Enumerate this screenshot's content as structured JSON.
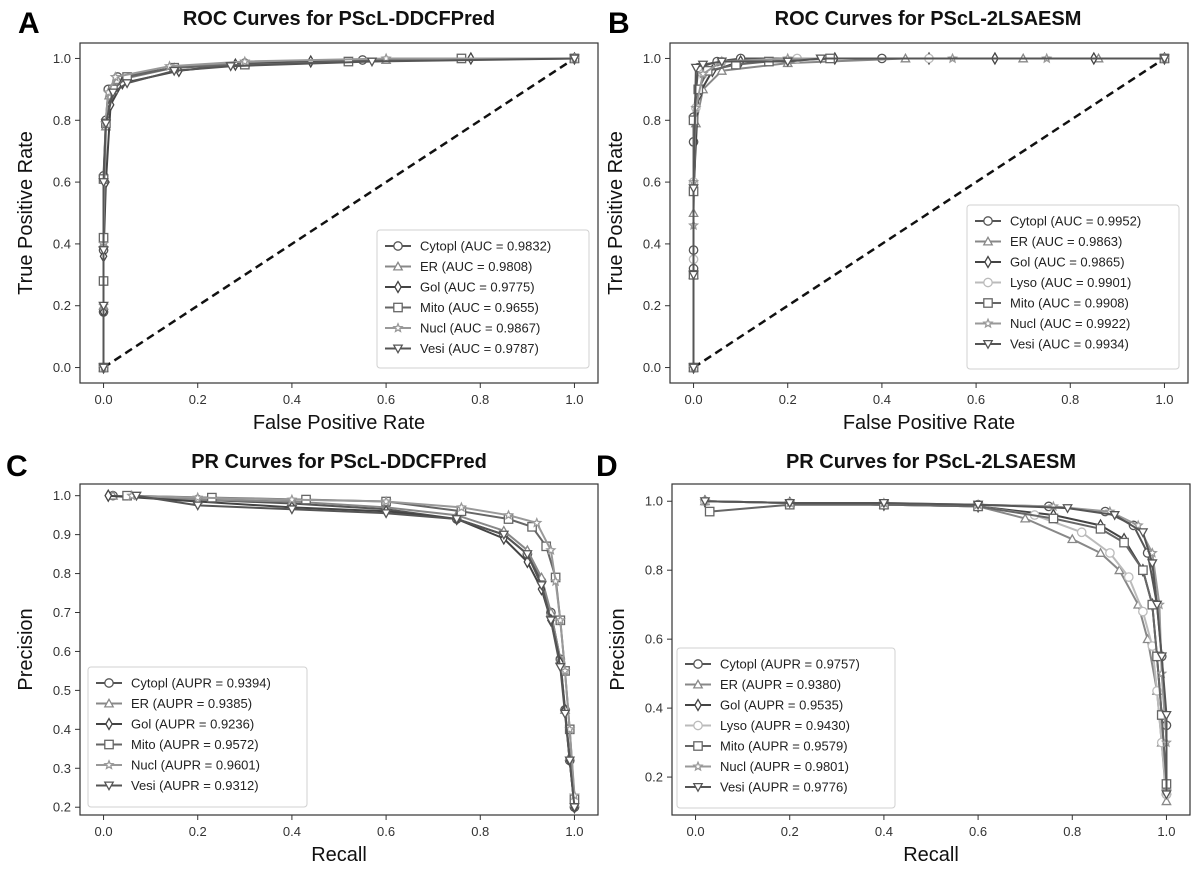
{
  "figure": {
    "panels": [
      "A",
      "B",
      "C",
      "D"
    ]
  },
  "chart_data": [
    {
      "panel": "A",
      "type": "line",
      "title": "ROC Curves for PScL-DDCFPred",
      "xlabel": "False Positive Rate",
      "ylabel": "True Positive Rate",
      "xlim": [
        -0.05,
        1.05
      ],
      "ylim": [
        -0.05,
        1.05
      ],
      "xticks": [
        "0.0",
        "0.2",
        "0.4",
        "0.6",
        "0.8",
        "1.0"
      ],
      "yticks": [
        "0.0",
        "0.2",
        "0.4",
        "0.6",
        "0.8",
        "1.0"
      ],
      "grid": false,
      "legend_position": "lower-right",
      "diagonal": "dashed black line from (0,0) to (1,1)",
      "series": [
        {
          "name": "Cytopl (AUC = 0.9832)",
          "marker": "circle",
          "color": "#555555",
          "x": [
            0,
            0,
            0,
            0,
            0.005,
            0.01,
            0.03,
            0.15,
            0.3,
            0.55,
            1.0
          ],
          "y": [
            0,
            0.18,
            0.38,
            0.62,
            0.8,
            0.9,
            0.94,
            0.97,
            0.985,
            0.995,
            1.0
          ]
        },
        {
          "name": "ER (AUC = 0.9808)",
          "marker": "triangle-up",
          "color": "#888888",
          "x": [
            0,
            0,
            0,
            0.005,
            0.012,
            0.03,
            0.15,
            0.3,
            0.6,
            1.0
          ],
          "y": [
            0,
            0.2,
            0.4,
            0.78,
            0.88,
            0.93,
            0.97,
            0.985,
            0.995,
            1.0
          ]
        },
        {
          "name": "Gol (AUC = 0.9775)",
          "marker": "diamond",
          "color": "#444444",
          "x": [
            0,
            0,
            0,
            0.005,
            0.015,
            0.04,
            0.16,
            0.28,
            0.44,
            0.78,
            1.0
          ],
          "y": [
            0,
            0.18,
            0.36,
            0.6,
            0.85,
            0.92,
            0.96,
            0.98,
            0.99,
            1.0,
            1.0
          ]
        },
        {
          "name": "Mito (AUC = 0.9655)",
          "marker": "square",
          "color": "#666666",
          "x": [
            0,
            0,
            0,
            0,
            0.005,
            0.02,
            0.05,
            0.15,
            0.3,
            0.52,
            0.76,
            1.0
          ],
          "y": [
            0,
            0.28,
            0.42,
            0.61,
            0.79,
            0.9,
            0.94,
            0.97,
            0.98,
            0.99,
            1.0,
            1.0
          ]
        },
        {
          "name": "Nucl (AUC = 0.9867)",
          "marker": "star",
          "color": "#999999",
          "x": [
            0,
            0,
            0,
            0.004,
            0.01,
            0.025,
            0.14,
            0.3,
            0.6,
            1.0
          ],
          "y": [
            0,
            0.2,
            0.4,
            0.79,
            0.89,
            0.94,
            0.975,
            0.99,
            1.0,
            1.0
          ]
        },
        {
          "name": "Vesi (AUC = 0.9787)",
          "marker": "triangle-down",
          "color": "#555555",
          "x": [
            0,
            0,
            0,
            0,
            0.005,
            0.02,
            0.05,
            0.15,
            0.27,
            0.57,
            1.0
          ],
          "y": [
            0,
            0.2,
            0.38,
            0.6,
            0.79,
            0.89,
            0.92,
            0.96,
            0.975,
            0.99,
            1.0
          ]
        }
      ]
    },
    {
      "panel": "B",
      "type": "line",
      "title": "ROC Curves for PScL-2LSAESM",
      "xlabel": "False Positive Rate",
      "ylabel": "True Positive Rate",
      "xlim": [
        -0.05,
        1.05
      ],
      "ylim": [
        -0.05,
        1.05
      ],
      "xticks": [
        "0.0",
        "0.2",
        "0.4",
        "0.6",
        "0.8",
        "1.0"
      ],
      "yticks": [
        "0.0",
        "0.2",
        "0.4",
        "0.6",
        "0.8",
        "1.0"
      ],
      "grid": false,
      "legend_position": "lower-right",
      "diagonal": "dashed black line from (0,0) to (1,1)",
      "series": [
        {
          "name": "Cytopl (AUC = 0.9952)",
          "marker": "circle",
          "color": "#555555",
          "x": [
            0,
            0,
            0,
            0,
            0,
            0.01,
            0.05,
            0.1,
            0.4,
            1.0
          ],
          "y": [
            0,
            0.32,
            0.38,
            0.73,
            0.81,
            0.97,
            0.99,
            1.0,
            1.0,
            1.0
          ]
        },
        {
          "name": "ER (AUC = 0.9863)",
          "marker": "triangle-up",
          "color": "#888888",
          "x": [
            0,
            0,
            0,
            0.005,
            0.02,
            0.06,
            0.2,
            0.45,
            0.7,
            0.86,
            1.0
          ],
          "y": [
            0,
            0.3,
            0.5,
            0.79,
            0.9,
            0.96,
            0.985,
            1.0,
            1.0,
            1.0,
            1.0
          ]
        },
        {
          "name": "Gol (AUC = 0.9865)",
          "marker": "diamond",
          "color": "#444444",
          "x": [
            0,
            0,
            0,
            0.01,
            0.04,
            0.1,
            0.3,
            0.5,
            0.64,
            0.85,
            1.0
          ],
          "y": [
            0,
            0.3,
            0.57,
            0.88,
            0.96,
            0.99,
            1.0,
            1.0,
            1.0,
            1.0,
            1.0
          ]
        },
        {
          "name": "Lyso (AUC = 0.9901)",
          "marker": "circle",
          "color": "#bbbbbb",
          "x": [
            0,
            0,
            0,
            0.005,
            0.02,
            0.06,
            0.22,
            0.5,
            1.0
          ],
          "y": [
            0,
            0.35,
            0.6,
            0.84,
            0.95,
            0.99,
            1.0,
            1.0,
            1.0
          ]
        },
        {
          "name": "Mito (AUC = 0.9908)",
          "marker": "square",
          "color": "#666666",
          "x": [
            0,
            0,
            0,
            0,
            0.01,
            0.03,
            0.09,
            0.16,
            0.29,
            1.0
          ],
          "y": [
            0,
            0.3,
            0.57,
            0.8,
            0.9,
            0.96,
            0.98,
            0.99,
            1.0,
            1.0
          ]
        },
        {
          "name": "Nucl (AUC = 0.9922)",
          "marker": "star",
          "color": "#999999",
          "x": [
            0,
            0,
            0,
            0.005,
            0.02,
            0.06,
            0.2,
            0.55,
            0.75,
            1.0
          ],
          "y": [
            0,
            0.46,
            0.6,
            0.84,
            0.95,
            0.99,
            1.0,
            1.0,
            1.0,
            1.0
          ]
        },
        {
          "name": "Vesi (AUC = 0.9934)",
          "marker": "triangle-down",
          "color": "#555555",
          "x": [
            0,
            0,
            0,
            0.005,
            0.02,
            0.06,
            0.2,
            0.27,
            1.0
          ],
          "y": [
            0,
            0.3,
            0.58,
            0.97,
            0.98,
            0.99,
            0.99,
            1.0,
            1.0
          ]
        }
      ]
    },
    {
      "panel": "C",
      "type": "line",
      "title": "PR Curves for PScL-DDCFPred",
      "xlabel": "Recall",
      "ylabel": "Precision",
      "xlim": [
        -0.05,
        1.05
      ],
      "ylim": [
        0.18,
        1.03
      ],
      "xticks": [
        "0.0",
        "0.2",
        "0.4",
        "0.6",
        "0.8",
        "1.0"
      ],
      "yticks": [
        "0.2",
        "0.3",
        "0.4",
        "0.5",
        "0.6",
        "0.7",
        "0.8",
        "0.9",
        "1.0"
      ],
      "grid": false,
      "legend_position": "lower-left",
      "series": [
        {
          "name": "Cytopl (AUPR = 0.9394)",
          "marker": "circle",
          "color": "#555555",
          "x": [
            0.02,
            0.2,
            0.4,
            0.6,
            0.75,
            0.85,
            0.9,
            0.93,
            0.95,
            0.97,
            0.98,
            0.99,
            1.0
          ],
          "y": [
            1.0,
            0.99,
            0.98,
            0.965,
            0.94,
            0.9,
            0.85,
            0.78,
            0.7,
            0.58,
            0.45,
            0.32,
            0.2
          ]
        },
        {
          "name": "ER (AUPR = 0.9385)",
          "marker": "triangle-up",
          "color": "#888888",
          "x": [
            0.02,
            0.2,
            0.4,
            0.6,
            0.75,
            0.85,
            0.9,
            0.93,
            0.95,
            0.97,
            0.98,
            0.99,
            1.0
          ],
          "y": [
            1.0,
            0.99,
            0.985,
            0.97,
            0.95,
            0.91,
            0.86,
            0.79,
            0.7,
            0.58,
            0.45,
            0.33,
            0.21
          ]
        },
        {
          "name": "Gol (AUPR = 0.9236)",
          "marker": "diamond",
          "color": "#444444",
          "x": [
            0.01,
            0.2,
            0.4,
            0.6,
            0.75,
            0.85,
            0.9,
            0.93,
            0.95,
            0.97,
            0.98,
            0.99,
            1.0
          ],
          "y": [
            1.0,
            0.985,
            0.97,
            0.96,
            0.94,
            0.89,
            0.83,
            0.76,
            0.68,
            0.57,
            0.45,
            0.32,
            0.2
          ]
        },
        {
          "name": "Mito (AUPR = 0.9572)",
          "marker": "square",
          "color": "#666666",
          "x": [
            0.05,
            0.23,
            0.43,
            0.6,
            0.76,
            0.86,
            0.91,
            0.94,
            0.96,
            0.97,
            0.98,
            0.99,
            1.0
          ],
          "y": [
            1.0,
            0.995,
            0.99,
            0.985,
            0.96,
            0.94,
            0.92,
            0.87,
            0.79,
            0.68,
            0.55,
            0.4,
            0.22
          ]
        },
        {
          "name": "Nucl (AUPR = 0.9601)",
          "marker": "star",
          "color": "#999999",
          "x": [
            0.06,
            0.2,
            0.4,
            0.6,
            0.76,
            0.86,
            0.92,
            0.95,
            0.96,
            0.97,
            0.98,
            0.99,
            1.0
          ],
          "y": [
            1.0,
            0.995,
            0.99,
            0.985,
            0.97,
            0.95,
            0.93,
            0.86,
            0.78,
            0.68,
            0.55,
            0.4,
            0.23
          ]
        },
        {
          "name": "Vesi (AUPR = 0.9312)",
          "marker": "triangle-down",
          "color": "#555555",
          "x": [
            0.07,
            0.2,
            0.4,
            0.6,
            0.75,
            0.85,
            0.9,
            0.93,
            0.95,
            0.97,
            0.98,
            0.99,
            1.0
          ],
          "y": [
            1.0,
            0.975,
            0.965,
            0.955,
            0.94,
            0.9,
            0.85,
            0.77,
            0.68,
            0.56,
            0.44,
            0.32,
            0.2
          ]
        }
      ]
    },
    {
      "panel": "D",
      "type": "line",
      "title": "PR Curves for PScL-2LSAESM",
      "xlabel": "Recall",
      "ylabel": "Precision",
      "xlim": [
        -0.05,
        1.05
      ],
      "ylim": [
        0.09,
        1.05
      ],
      "xticks": [
        "0.0",
        "0.2",
        "0.4",
        "0.6",
        "0.8",
        "1.0"
      ],
      "yticks": [
        "0.2",
        "0.4",
        "0.6",
        "0.8",
        "1.0"
      ],
      "grid": false,
      "legend_position": "lower-left",
      "series": [
        {
          "name": "Cytopl (AUPR = 0.9757)",
          "marker": "circle",
          "color": "#555555",
          "x": [
            0.02,
            0.2,
            0.4,
            0.6,
            0.75,
            0.87,
            0.93,
            0.96,
            0.98,
            0.99,
            1.0,
            1.0
          ],
          "y": [
            1.0,
            0.995,
            0.99,
            0.99,
            0.985,
            0.97,
            0.93,
            0.85,
            0.7,
            0.55,
            0.35,
            0.15
          ]
        },
        {
          "name": "ER (AUPR = 0.9380)",
          "marker": "triangle-up",
          "color": "#888888",
          "x": [
            0.02,
            0.2,
            0.4,
            0.6,
            0.7,
            0.8,
            0.86,
            0.9,
            0.94,
            0.96,
            0.98,
            0.99,
            1.0
          ],
          "y": [
            1.0,
            0.995,
            0.99,
            0.985,
            0.95,
            0.89,
            0.85,
            0.8,
            0.7,
            0.6,
            0.45,
            0.3,
            0.13
          ]
        },
        {
          "name": "Gol (AUPR = 0.9535)",
          "marker": "diamond",
          "color": "#444444",
          "x": [
            0.02,
            0.2,
            0.4,
            0.6,
            0.76,
            0.86,
            0.91,
            0.95,
            0.97,
            0.98,
            0.99,
            1.0
          ],
          "y": [
            1.0,
            0.995,
            0.99,
            0.985,
            0.96,
            0.93,
            0.89,
            0.8,
            0.7,
            0.55,
            0.38,
            0.17
          ]
        },
        {
          "name": "Lyso (AUPR = 0.9430)",
          "marker": "circle",
          "color": "#bbbbbb",
          "x": [
            0.02,
            0.2,
            0.4,
            0.6,
            0.72,
            0.82,
            0.88,
            0.92,
            0.95,
            0.97,
            0.98,
            0.99,
            1.0
          ],
          "y": [
            1.0,
            0.995,
            0.99,
            0.985,
            0.96,
            0.91,
            0.85,
            0.78,
            0.68,
            0.58,
            0.45,
            0.3,
            0.15
          ]
        },
        {
          "name": "Mito (AUPR = 0.9579)",
          "marker": "square",
          "color": "#666666",
          "x": [
            0.03,
            0.2,
            0.4,
            0.6,
            0.76,
            0.86,
            0.91,
            0.95,
            0.97,
            0.98,
            0.99,
            1.0
          ],
          "y": [
            0.97,
            0.99,
            0.99,
            0.985,
            0.95,
            0.92,
            0.88,
            0.8,
            0.7,
            0.55,
            0.38,
            0.18
          ]
        },
        {
          "name": "Nucl (AUPR = 0.9801)",
          "marker": "star",
          "color": "#999999",
          "x": [
            0.02,
            0.2,
            0.4,
            0.6,
            0.76,
            0.88,
            0.94,
            0.97,
            0.985,
            0.99,
            1.0,
            1.0
          ],
          "y": [
            1.0,
            0.995,
            0.995,
            0.99,
            0.985,
            0.97,
            0.93,
            0.85,
            0.7,
            0.5,
            0.3,
            0.16
          ]
        },
        {
          "name": "Vesi (AUPR = 0.9776)",
          "marker": "triangle-down",
          "color": "#555555",
          "x": [
            0.02,
            0.2,
            0.4,
            0.6,
            0.79,
            0.89,
            0.95,
            0.97,
            0.98,
            0.99,
            1.0,
            1.0
          ],
          "y": [
            1.0,
            0.995,
            0.995,
            0.99,
            0.98,
            0.96,
            0.91,
            0.82,
            0.7,
            0.55,
            0.38,
            0.15
          ]
        }
      ]
    }
  ]
}
